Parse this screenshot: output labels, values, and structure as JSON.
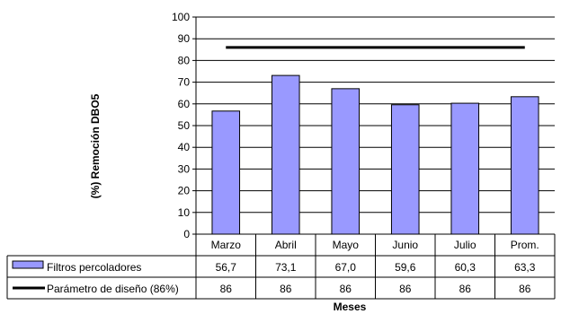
{
  "chart_data": {
    "type": "bar",
    "categories": [
      "Marzo",
      "Abril",
      "Mayo",
      "Junio",
      "Julio",
      "Prom."
    ],
    "series": [
      {
        "name": "Filtros percoladores",
        "type": "bar",
        "values": [
          56.7,
          73.1,
          67.0,
          59.6,
          60.3,
          63.3
        ],
        "value_labels": [
          "56,7",
          "73,1",
          "67,0",
          "59,6",
          "60,3",
          "63,3"
        ],
        "color": "#9999ff"
      },
      {
        "name": "Parámetro de diseño (86%)",
        "type": "line",
        "values": [
          86,
          86,
          86,
          86,
          86,
          86
        ],
        "value_labels": [
          "86",
          "86",
          "86",
          "86",
          "86",
          "86"
        ],
        "color": "#000000"
      }
    ],
    "ylabel": "(%) Remoción DBO5",
    "xlabel": "Meses",
    "ylim": [
      0,
      100
    ],
    "yticks": [
      0,
      10,
      20,
      30,
      40,
      50,
      60,
      70,
      80,
      90,
      100
    ],
    "grid": true,
    "legend": "data-table"
  }
}
